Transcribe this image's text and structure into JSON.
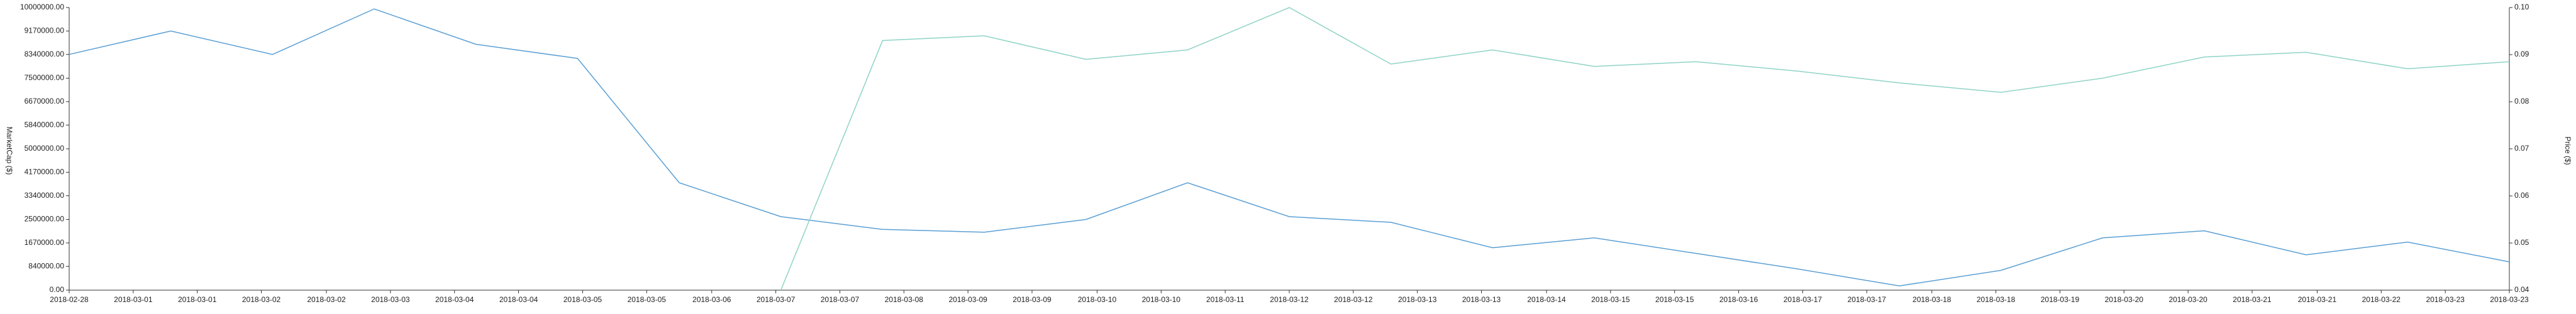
{
  "chart_data": {
    "type": "line",
    "ylabel": "MarketCap ($)",
    "y2label": "Price ($)",
    "x": [
      0,
      1,
      2,
      3,
      4,
      5,
      6,
      7,
      8,
      9,
      10,
      11,
      12,
      13,
      14,
      15,
      16,
      17,
      18,
      19,
      20,
      21,
      22,
      23,
      24
    ],
    "xlim": [
      0,
      24
    ],
    "xticks": [
      {
        "value": 0,
        "label": "2018-02-28"
      },
      {
        "value": 0.63,
        "label": "2018-03-01"
      },
      {
        "value": 1.26,
        "label": "2018-03-01"
      },
      {
        "value": 1.89,
        "label": "2018-03-02"
      },
      {
        "value": 2.53,
        "label": "2018-03-02"
      },
      {
        "value": 3.16,
        "label": "2018-03-03"
      },
      {
        "value": 3.79,
        "label": "2018-03-04"
      },
      {
        "value": 4.42,
        "label": "2018-03-04"
      },
      {
        "value": 5.05,
        "label": "2018-03-05"
      },
      {
        "value": 5.68,
        "label": "2018-03-05"
      },
      {
        "value": 6.32,
        "label": "2018-03-06"
      },
      {
        "value": 6.95,
        "label": "2018-03-07"
      },
      {
        "value": 7.58,
        "label": "2018-03-07"
      },
      {
        "value": 8.21,
        "label": "2018-03-08"
      },
      {
        "value": 8.84,
        "label": "2018-03-09"
      },
      {
        "value": 9.47,
        "label": "2018-03-09"
      },
      {
        "value": 10.11,
        "label": "2018-03-10"
      },
      {
        "value": 10.74,
        "label": "2018-03-10"
      },
      {
        "value": 11.37,
        "label": "2018-03-11"
      },
      {
        "value": 12.0,
        "label": "2018-03-12"
      },
      {
        "value": 12.63,
        "label": "2018-03-12"
      },
      {
        "value": 13.26,
        "label": "2018-03-13"
      },
      {
        "value": 13.89,
        "label": "2018-03-13"
      },
      {
        "value": 14.53,
        "label": "2018-03-14"
      },
      {
        "value": 15.16,
        "label": "2018-03-15"
      },
      {
        "value": 15.79,
        "label": "2018-03-15"
      },
      {
        "value": 16.42,
        "label": "2018-03-16"
      },
      {
        "value": 17.05,
        "label": "2018-03-17"
      },
      {
        "value": 17.68,
        "label": "2018-03-17"
      },
      {
        "value": 18.32,
        "label": "2018-03-18"
      },
      {
        "value": 18.95,
        "label": "2018-03-18"
      },
      {
        "value": 19.58,
        "label": "2018-03-19"
      },
      {
        "value": 20.21,
        "label": "2018-03-20"
      },
      {
        "value": 20.84,
        "label": "2018-03-20"
      },
      {
        "value": 21.47,
        "label": "2018-03-21"
      },
      {
        "value": 22.11,
        "label": "2018-03-21"
      },
      {
        "value": 22.74,
        "label": "2018-03-22"
      },
      {
        "value": 23.37,
        "label": "2018-03-23"
      },
      {
        "value": 24,
        "label": "2018-03-23"
      }
    ],
    "ylim": [
      0,
      10000000
    ],
    "yticks": [
      {
        "value": 0,
        "label": "0.00"
      },
      {
        "value": 840000,
        "label": "840000.00"
      },
      {
        "value": 1670000,
        "label": "1670000.00"
      },
      {
        "value": 2500000,
        "label": "2500000.00"
      },
      {
        "value": 3340000,
        "label": "3340000.00"
      },
      {
        "value": 4170000,
        "label": "4170000.00"
      },
      {
        "value": 5000000,
        "label": "5000000.00"
      },
      {
        "value": 5840000,
        "label": "5840000.00"
      },
      {
        "value": 6670000,
        "label": "6670000.00"
      },
      {
        "value": 7500000,
        "label": "7500000.00"
      },
      {
        "value": 8340000,
        "label": "8340000.00"
      },
      {
        "value": 9170000,
        "label": "9170000.00"
      },
      {
        "value": 10000000,
        "label": "10000000.00"
      }
    ],
    "y2lim": [
      0.04,
      0.1
    ],
    "y2ticks": [
      0.04,
      0.05,
      0.06,
      0.07,
      0.08,
      0.09,
      {
        "value": 0.1,
        "label": "0.10"
      }
    ],
    "series": [
      {
        "name": "MarketCap",
        "color": "#5a9fd4",
        "values": [
          8340000,
          9170000,
          8340000,
          9950000,
          8700000,
          8200000,
          3800000,
          2600000,
          2150000,
          2050000,
          2500000,
          3800000,
          2600000,
          2400000,
          1500000,
          1850000,
          1300000,
          750000,
          150000,
          700000,
          1850000,
          2100000,
          1250000,
          1700000,
          1000000
        ]
      },
      {
        "name": "Price",
        "color": "#8fd3c6",
        "axis": "y2",
        "values": [
          null,
          null,
          null,
          null,
          null,
          null,
          null,
          0.04,
          0.093,
          0.094,
          0.089,
          0.091,
          0.1,
          0.088,
          0.091,
          0.0875,
          0.0885,
          0.0865,
          0.084,
          0.082,
          0.085,
          0.0895,
          0.0905,
          0.087,
          0.0885
        ]
      }
    ]
  }
}
